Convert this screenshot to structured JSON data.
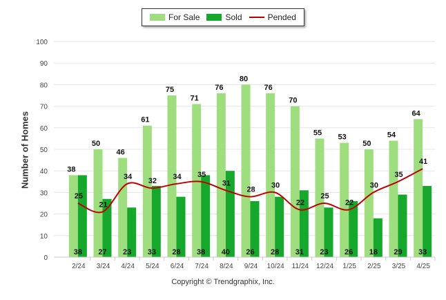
{
  "chart_data": {
    "type": "bar",
    "title": "",
    "xlabel": "",
    "ylabel": "Number of Homes",
    "ylim": [
      0,
      100
    ],
    "yticks": [
      0,
      10,
      20,
      30,
      40,
      50,
      60,
      70,
      80,
      90,
      100
    ],
    "grid": true,
    "legend_position": "top-center",
    "categories": [
      "2/24",
      "3/24",
      "4/24",
      "5/24",
      "6/24",
      "7/24",
      "8/24",
      "9/24",
      "10/24",
      "11/24",
      "12/24",
      "1/25",
      "2/25",
      "3/25",
      "4/25"
    ],
    "series": [
      {
        "name": "For Sale",
        "kind": "bar",
        "color": "#9ede7f",
        "values": [
          38,
          50,
          46,
          61,
          75,
          71,
          76,
          80,
          76,
          70,
          55,
          53,
          50,
          54,
          64
        ]
      },
      {
        "name": "Sold",
        "kind": "bar",
        "color": "#16a82c",
        "values": [
          38,
          27,
          23,
          33,
          28,
          38,
          40,
          26,
          28,
          31,
          23,
          26,
          18,
          29,
          33
        ]
      },
      {
        "name": "Pended",
        "kind": "line",
        "color": "#c00000",
        "values": [
          25,
          21,
          34,
          32,
          34,
          35,
          31,
          28,
          30,
          22,
          25,
          22,
          30,
          35,
          41
        ]
      }
    ]
  },
  "copyright": "Copyright © Trendgraphix, Inc."
}
